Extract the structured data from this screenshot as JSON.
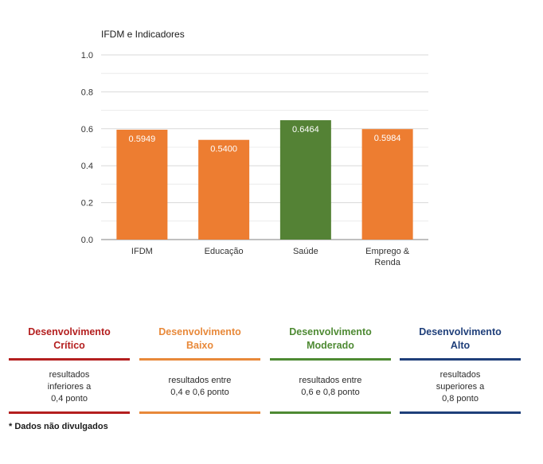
{
  "chart_data": {
    "type": "bar",
    "title": "IFDM e Indicadores",
    "categories": [
      [
        "IFDM"
      ],
      [
        "Educação"
      ],
      [
        "Saúde"
      ],
      [
        "Emprego &",
        "Renda"
      ]
    ],
    "values": [
      0.5949,
      0.54,
      0.6464,
      0.5984
    ],
    "data_labels": [
      "0.5949",
      "0.5400",
      "0.6464",
      "0.5984"
    ],
    "bar_colors": [
      "#ed7d31",
      "#ed7d31",
      "#548235",
      "#ed7d31"
    ],
    "ylim": [
      0,
      1.0
    ],
    "yticks": [
      "0.0",
      "0.2",
      "0.4",
      "0.6",
      "0.8",
      "1.0"
    ],
    "grid": true,
    "xlabel": "",
    "ylabel": ""
  },
  "legend": [
    {
      "title_line1": "Desenvolvimento",
      "title_line2": "Crítico",
      "color": "#b41f1f",
      "desc": [
        "resultados",
        "inferiores a",
        "0,4 ponto"
      ]
    },
    {
      "title_line1": "Desenvolvimento",
      "title_line2": "Baixo",
      "color": "#e8893a",
      "desc": [
        "resultados entre",
        "0,4 e 0,6 ponto"
      ]
    },
    {
      "title_line1": "Desenvolvimento",
      "title_line2": "Moderado",
      "color": "#4e8a33",
      "desc": [
        "resultados entre",
        "0,6 e 0,8 ponto"
      ]
    },
    {
      "title_line1": "Desenvolvimento",
      "title_line2": "Alto",
      "color": "#1f3f7a",
      "desc": [
        "resultados",
        "superiores a",
        "0,8 ponto"
      ]
    }
  ],
  "footnote": "* Dados não divulgados"
}
